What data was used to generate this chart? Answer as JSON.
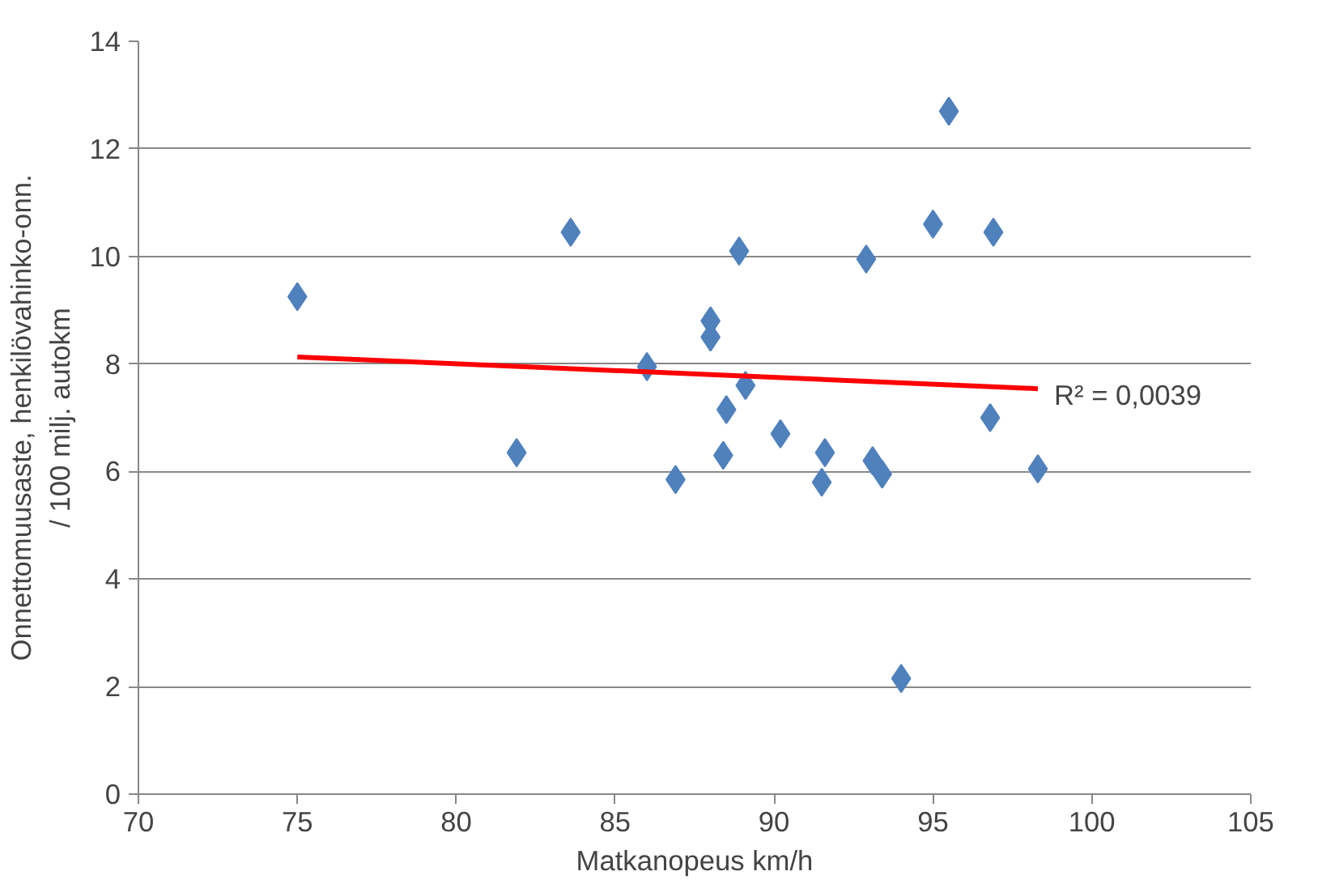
{
  "chart_data": {
    "type": "scatter",
    "xlabel": "Matkanopeus km/h",
    "ylabel": "Onnettomuusaste, henkilövahinko-onn.\n/ 100 milj. autokm",
    "x": [
      75.0,
      81.9,
      83.6,
      86.0,
      86.9,
      88.0,
      88.0,
      88.4,
      88.5,
      88.9,
      89.1,
      90.2,
      91.6,
      91.5,
      92.9,
      93.1,
      93.4,
      94.0,
      95.0,
      95.5,
      96.9,
      96.8,
      98.3
    ],
    "series": [
      {
        "color": "#4f81bd",
        "marker": "diamond",
        "values": [
          9.25,
          6.35,
          10.45,
          7.95,
          5.85,
          8.8,
          8.5,
          6.3,
          7.15,
          10.1,
          7.6,
          6.7,
          6.35,
          5.8,
          9.95,
          6.2,
          5.95,
          2.15,
          10.6,
          12.7,
          10.45,
          7.0,
          6.05
        ]
      },
      {
        "type": "line",
        "color": "#ff0000",
        "marker": "none",
        "line_style": "solid",
        "x": [
          75.0,
          98.3
        ],
        "values": [
          8.13,
          7.54
        ]
      }
    ],
    "annotations": [
      {
        "text": "R² = 0,0039",
        "x": 98.3,
        "y": 7.54
      }
    ],
    "xlim": [
      70,
      105
    ],
    "xticks": [
      70,
      75,
      80,
      85,
      90,
      95,
      100,
      105
    ],
    "ylim": [
      0,
      14
    ],
    "yticks": [
      0,
      2,
      4,
      6,
      8,
      10,
      12,
      14
    ],
    "grid": "y"
  }
}
